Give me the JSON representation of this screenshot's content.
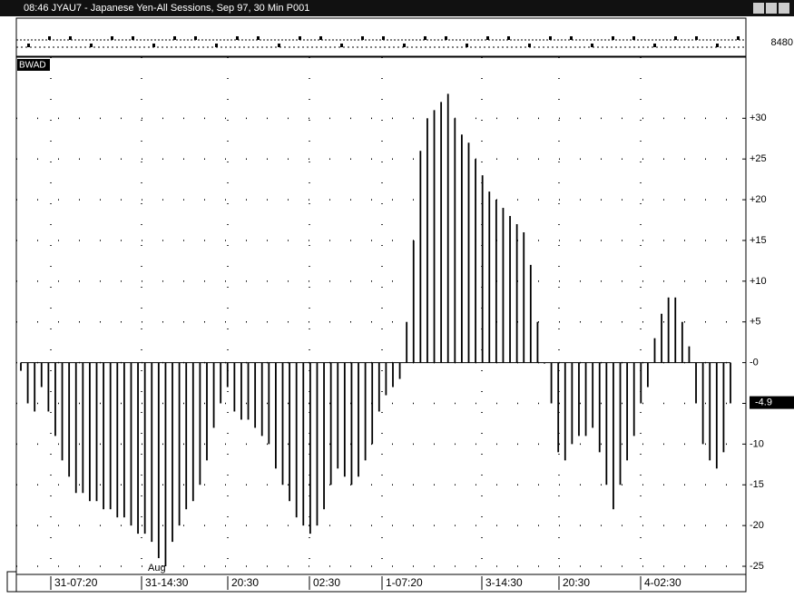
{
  "window": {
    "title": "08:46  JYAU7 - Japanese Yen-All Sessions, Sep 97, 30 Min  P001",
    "top_panel_value": "8480"
  },
  "chart_data": {
    "type": "bar",
    "indicator": "BWAD",
    "annotation": "Aug",
    "color": "#000000",
    "grid": true,
    "x_labels": [
      "31-07:20",
      "31-14:30",
      "20:30",
      "02:30",
      "1-07:20",
      "3-14:30",
      "20:30",
      "4-02:30"
    ],
    "values": [
      -1,
      -5,
      -6,
      -3,
      -6,
      -9,
      -12,
      -14,
      -16,
      -16,
      -17,
      -17,
      -18,
      -18,
      -19,
      -19,
      -20,
      -21,
      -21,
      -22,
      -24,
      -25,
      -22,
      -20,
      -18,
      -17,
      -15,
      -12,
      -8,
      -5,
      -3,
      -6,
      -7,
      -7,
      -8,
      -9,
      -10,
      -13,
      -15,
      -17,
      -19,
      -20,
      -21,
      -20,
      -18,
      -15,
      -13,
      -14,
      -15,
      -14,
      -12,
      -10,
      -6,
      -4,
      -3,
      -2,
      5,
      15,
      26,
      30,
      31,
      32,
      33,
      30,
      28,
      27,
      25,
      23,
      21,
      20,
      19,
      18,
      17,
      16,
      12,
      5,
      0,
      -5,
      -11,
      -12,
      -10,
      -9,
      -9,
      -8,
      -11,
      -15,
      -18,
      -15,
      -12,
      -9,
      -5,
      -3,
      3,
      6,
      8,
      8,
      5,
      2,
      -5,
      -10,
      -12,
      -13,
      -11,
      -5
    ],
    "ylim": [
      -26,
      37.5
    ],
    "yticks": [
      {
        "value": 30,
        "label": "+30"
      },
      {
        "value": 25,
        "label": "+25"
      },
      {
        "value": 20,
        "label": "+20"
      },
      {
        "value": 15,
        "label": "+15"
      },
      {
        "value": 10,
        "label": "+10"
      },
      {
        "value": 5,
        "label": "+5"
      },
      {
        "value": 0,
        "label": "-0"
      },
      {
        "value": -5,
        "label": "-5"
      },
      {
        "value": -10,
        "label": "-10"
      },
      {
        "value": -15,
        "label": "-15"
      },
      {
        "value": -20,
        "label": "-20"
      },
      {
        "value": -25,
        "label": "-25"
      }
    ],
    "last_value": -4.9
  }
}
